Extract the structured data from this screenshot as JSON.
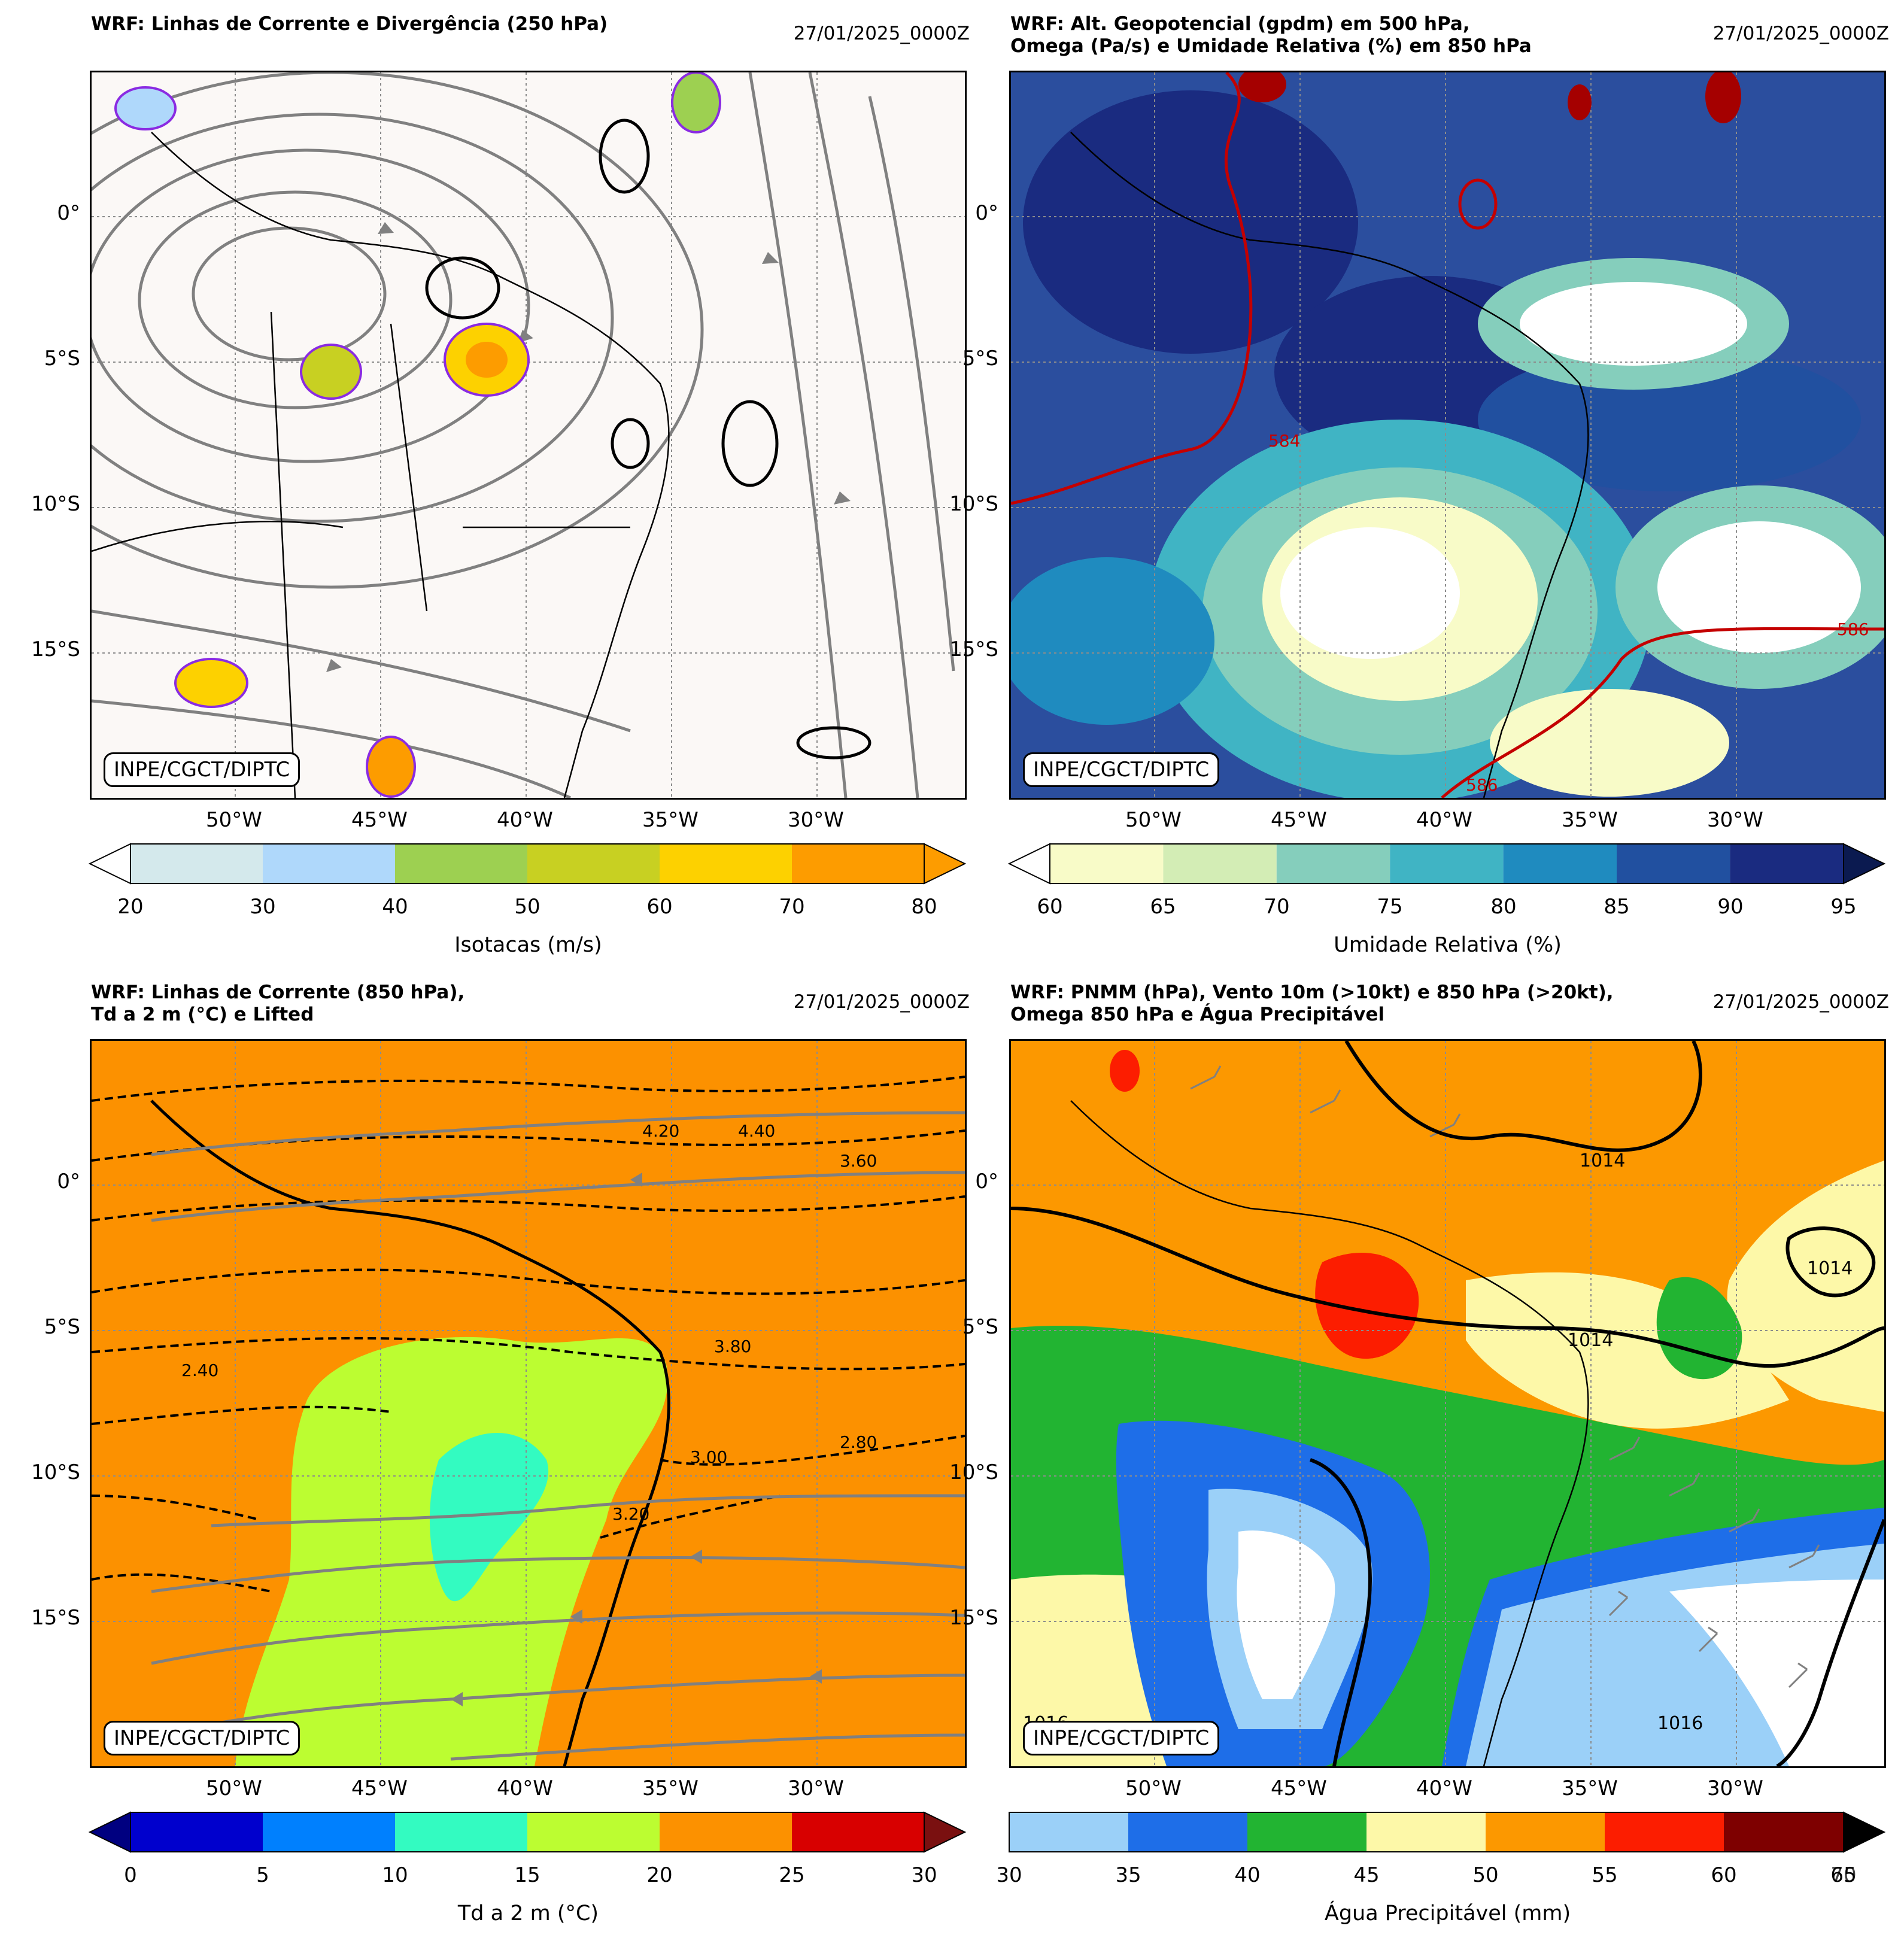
{
  "panels": [
    {
      "title": "WRF: Linhas de Corrente e Divergência (250 hPa)",
      "date": "27/01/2025_0000Z",
      "badge": "INPE/CGCT/DIPTC",
      "background": "#fbf8f6",
      "colorbar": {
        "label": "Isotacas (m/s)",
        "ticks": [
          "20",
          "30",
          "40",
          "50",
          "60",
          "70",
          "80"
        ],
        "colors": [
          "#d4e9ec",
          "#afd8fb",
          "#9dd051",
          "#c8d022",
          "#fdd100",
          "#fd9c00"
        ],
        "under": "#ffffff",
        "over": "#fd9c00"
      }
    },
    {
      "title": "WRF: Alt. Geopotencial (gpdm) em 500 hPa,\nOmega (Pa/s) e Umidade Relativa (%) em 850 hPa",
      "date": "27/01/2025_0000Z",
      "badge": "INPE/CGCT/DIPTC",
      "background": "#2b4e9e",
      "contour_labels": [
        "584",
        "586",
        "586"
      ],
      "colorbar": {
        "label": "Umidade Relativa (%)",
        "ticks": [
          "60",
          "65",
          "70",
          "75",
          "80",
          "85",
          "90",
          "95"
        ],
        "colors": [
          "#f8fbc8",
          "#d3edb5",
          "#85cebc",
          "#40b4c4",
          "#1f8bbf",
          "#2150a0",
          "#1a2b80"
        ],
        "under": "#ffffff",
        "over": "#0b1a50"
      }
    },
    {
      "title": "WRF: Linhas de Corrente (850 hPa),\nTd a 2 m (°C) e Lifted",
      "date": "27/01/2025_0000Z",
      "badge": "INPE/CGCT/DIPTC",
      "background": "#fc9100",
      "contour_labels": [
        "4.20",
        "4.40",
        "3.60",
        "3.00",
        "2.80",
        "3.20",
        "3.80",
        "2.40"
      ],
      "colorbar": {
        "label": "Td a 2 m (°C)",
        "ticks": [
          "0",
          "5",
          "10",
          "15",
          "20",
          "25",
          "30"
        ],
        "colors": [
          "#0000cd",
          "#0080fe",
          "#33fbc1",
          "#bcfd31",
          "#fc9100",
          "#d80000"
        ],
        "under": "#000080",
        "over": "#7a1010"
      }
    },
    {
      "title": "WRF: PNMM (hPa), Vento 10m (>10kt) e 850 hPa (>20kt),\nOmega 850 hPa e Água Precipitável",
      "date": "27/01/2025_0000Z",
      "badge": "INPE/CGCT/DIPTC",
      "background": "#fc9800",
      "contour_labels": [
        "1014",
        "1014",
        "1014",
        "1016",
        "1016"
      ],
      "colorbar": {
        "label": "Água Precipitável (mm)",
        "ticks": [
          "30",
          "35",
          "40",
          "45",
          "50",
          "55",
          "60",
          "65"
        ],
        "end_tick": "70",
        "colors": [
          "#9bd0f8",
          "#1e6ee8",
          "#22b432",
          "#fdf8a8",
          "#fc9800",
          "#fc1d00",
          "#7e0000"
        ],
        "over": "#000000"
      }
    }
  ],
  "axes": {
    "lat_labels": [
      "0°",
      "5°S",
      "10°S",
      "15°S"
    ],
    "lon_labels": [
      "50°W",
      "45°W",
      "40°W",
      "35°W",
      "30°W"
    ]
  }
}
